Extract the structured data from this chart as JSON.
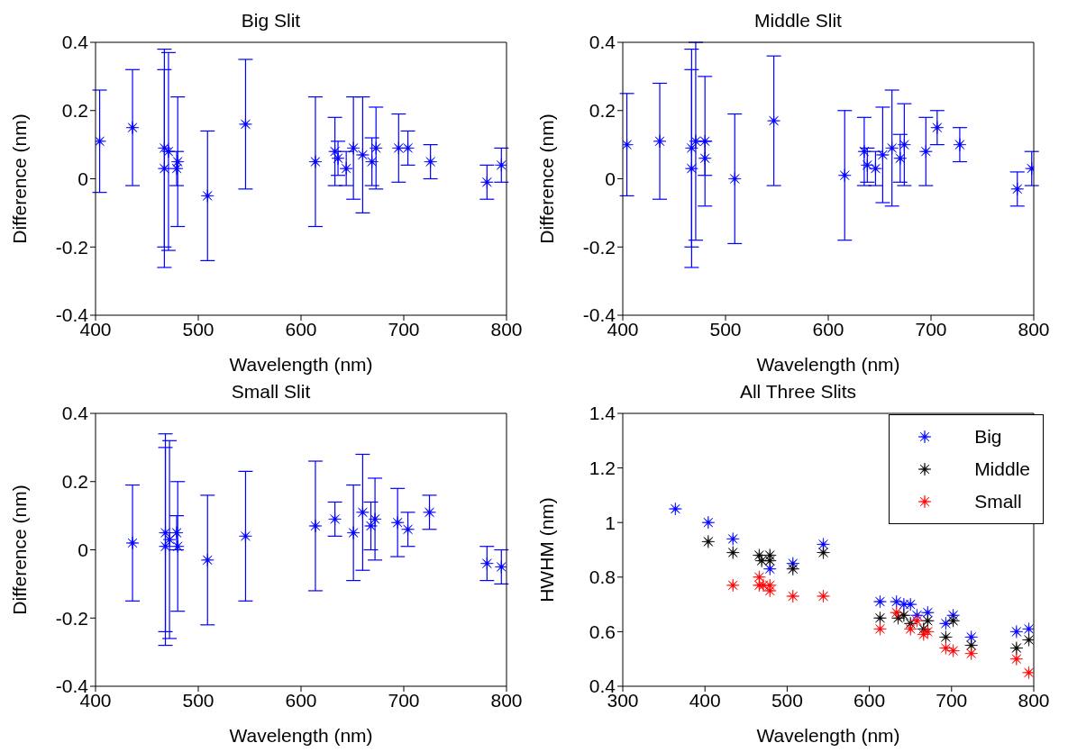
{
  "chart_data": [
    {
      "type": "scatter",
      "title": "Big Slit",
      "xlabel": "Wavelength (nm)",
      "ylabel": "Difference (nm)",
      "xlim": [
        400,
        800
      ],
      "xticks": [
        400,
        500,
        600,
        700,
        800
      ],
      "ylim": [
        -0.4,
        0.4
      ],
      "yticks": [
        -0.4,
        -0.2,
        0,
        0.2,
        0.4
      ],
      "marker": "star",
      "series": [
        {
          "color": "#0000ff",
          "x": [
            404,
            436,
            467,
            467,
            471,
            480,
            479,
            509,
            546,
            614,
            633,
            636,
            644,
            651,
            660,
            669,
            673,
            695,
            704,
            726,
            781,
            795
          ],
          "values": [
            0.11,
            0.15,
            0.09,
            0.03,
            0.08,
            0.05,
            0.03,
            -0.05,
            0.16,
            0.05,
            0.08,
            0.06,
            0.03,
            0.09,
            0.07,
            0.05,
            0.09,
            0.09,
            0.09,
            0.05,
            -0.01,
            0.04
          ],
          "errors": [
            0.15,
            0.17,
            0.29,
            0.29,
            0.29,
            0.19,
            0.05,
            0.19,
            0.19,
            0.19,
            0.1,
            0.05,
            0.05,
            0.15,
            0.17,
            0.07,
            0.12,
            0.1,
            0.05,
            0.05,
            0.05,
            0.05
          ]
        }
      ]
    },
    {
      "type": "scatter",
      "title": "Middle Slit",
      "xlabel": "Wavelength (nm)",
      "ylabel": "Difference (nm)",
      "xlim": [
        400,
        800
      ],
      "xticks": [
        400,
        500,
        600,
        700,
        800
      ],
      "ylim": [
        -0.4,
        0.4
      ],
      "yticks": [
        -0.4,
        -0.2,
        0,
        0.2,
        0.4
      ],
      "marker": "star",
      "series": [
        {
          "color": "#0000ff",
          "x": [
            404,
            436,
            467,
            467,
            471,
            480,
            480,
            509,
            547,
            616,
            635,
            638,
            646,
            653,
            662,
            670,
            674,
            695,
            706,
            728,
            784,
            798
          ],
          "values": [
            0.1,
            0.11,
            0.09,
            0.03,
            0.11,
            0.11,
            0.06,
            0,
            0.17,
            0.01,
            0.08,
            0.04,
            0.03,
            0.07,
            0.09,
            0.06,
            0.1,
            0.08,
            0.15,
            0.1,
            -0.03,
            0.03
          ],
          "errors": [
            0.15,
            0.17,
            0.29,
            0.29,
            0.29,
            0.19,
            0.05,
            0.19,
            0.19,
            0.19,
            0.1,
            0.05,
            0.05,
            0.14,
            0.17,
            0.07,
            0.12,
            0.1,
            0.05,
            0.05,
            0.05,
            0.05
          ]
        }
      ]
    },
    {
      "type": "scatter",
      "title": "Small Slit",
      "xlabel": "Wavelength (nm)",
      "ylabel": "Difference (nm)",
      "xlim": [
        400,
        800
      ],
      "xticks": [
        400,
        500,
        600,
        700,
        800
      ],
      "ylim": [
        -0.4,
        0.4
      ],
      "yticks": [
        -0.4,
        -0.2,
        0,
        0.2,
        0.4
      ],
      "marker": "star",
      "series": [
        {
          "color": "#0000ff",
          "x": [
            436,
            468,
            468,
            472,
            479,
            480,
            509,
            546,
            614,
            633,
            651,
            660,
            668,
            672,
            694,
            704,
            725,
            781,
            795
          ],
          "values": [
            0.02,
            0.05,
            0.01,
            0.03,
            0.05,
            0.01,
            -0.03,
            0.04,
            0.07,
            0.09,
            0.05,
            0.11,
            0.07,
            0.09,
            0.08,
            0.06,
            0.11,
            -0.04,
            -0.05
          ],
          "errors": [
            0.17,
            0.29,
            0.29,
            0.29,
            0.05,
            0.19,
            0.19,
            0.19,
            0.19,
            0.05,
            0.14,
            0.17,
            0.07,
            0.12,
            0.1,
            0.05,
            0.05,
            0.05,
            0.05
          ]
        }
      ]
    },
    {
      "type": "scatter",
      "title": "All Three Slits",
      "xlabel": "Wavelength (nm)",
      "ylabel": "HWHM (nm)",
      "xlim": [
        300,
        800
      ],
      "xticks": [
        300,
        400,
        500,
        600,
        700,
        800
      ],
      "ylim": [
        0.4,
        1.4
      ],
      "yticks": [
        0.4,
        0.6,
        0.8,
        1,
        1.2,
        1.4
      ],
      "marker": "star",
      "legend": "top right",
      "series": [
        {
          "name": "Big",
          "color": "#0000ff",
          "x": [
            364,
            404,
            434,
            466,
            469,
            479,
            507,
            544,
            613,
            633,
            642,
            650,
            658,
            671,
            693,
            702,
            724,
            779,
            794
          ],
          "values": [
            1.05,
            1,
            0.94,
            null,
            null,
            0.83,
            0.85,
            0.92,
            0.71,
            0.71,
            0.7,
            0.7,
            0.66,
            0.67,
            0.63,
            0.66,
            0.58,
            0.6,
            0.61
          ]
        },
        {
          "name": "Middle",
          "color": "#000000",
          "x": [
            404,
            434,
            466,
            469,
            479,
            479,
            507,
            544,
            613,
            635,
            642,
            650,
            666,
            671,
            693,
            702,
            724,
            779,
            794
          ],
          "values": [
            0.93,
            0.89,
            0.88,
            0.86,
            0.88,
            0.86,
            0.83,
            0.89,
            0.65,
            0.65,
            0.66,
            0.63,
            0.61,
            0.64,
            0.58,
            0.64,
            0.55,
            0.54,
            0.57
          ]
        },
        {
          "name": "Small",
          "color": "#ff0000",
          "x": [
            434,
            466,
            466,
            471,
            479,
            479,
            507,
            544,
            613,
            633,
            650,
            658,
            666,
            671,
            693,
            702,
            724,
            779,
            794
          ],
          "values": [
            0.77,
            0.8,
            0.77,
            0.77,
            0.77,
            0.75,
            0.73,
            0.73,
            0.61,
            0.67,
            0.61,
            0.64,
            0.59,
            0.6,
            0.54,
            0.53,
            0.52,
            0.5,
            0.45
          ]
        }
      ]
    }
  ]
}
